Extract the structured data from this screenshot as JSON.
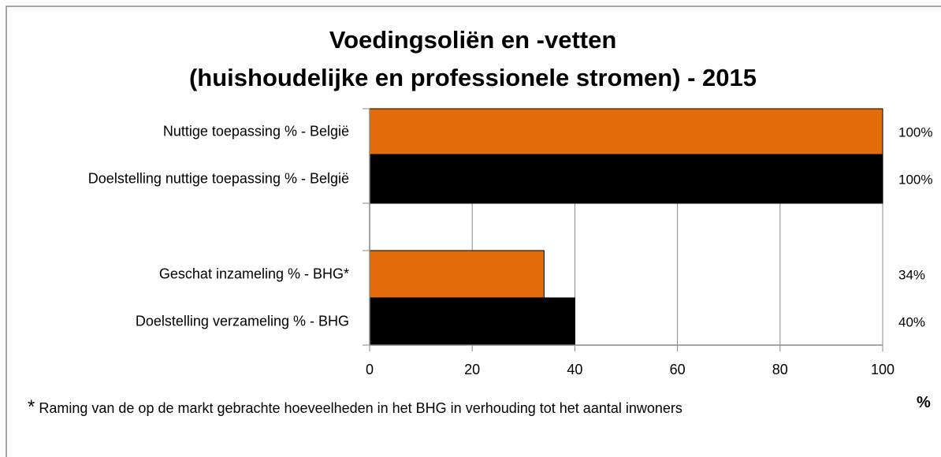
{
  "chart_data": {
    "type": "bar",
    "orientation": "horizontal",
    "title": [
      "Voedingsoliën en -vetten",
      "(huishoudelijke en professionele stromen) - 2015"
    ],
    "categories": [
      "Nuttige toepassing % - België",
      "Doelstelling nuttige toepassing % - België",
      "Geschat inzameling % - BHG*",
      "Doelstelling verzameling % - BHG"
    ],
    "values": [
      100,
      100,
      34,
      40
    ],
    "value_labels": [
      "100%",
      "100%",
      "34%",
      "40%"
    ],
    "colors": [
      "#e36c0a",
      "#000000",
      "#e36c0a",
      "#000000"
    ],
    "xlim": [
      0,
      100
    ],
    "xticks": [
      0,
      20,
      40,
      60,
      80,
      100
    ],
    "grid": true,
    "xlabel": "%",
    "footnote_marker": "*",
    "footnote": "Raming van de op de markt gebrachte hoeveelheden in het BHG in verhouding tot het aantal inwoners"
  }
}
